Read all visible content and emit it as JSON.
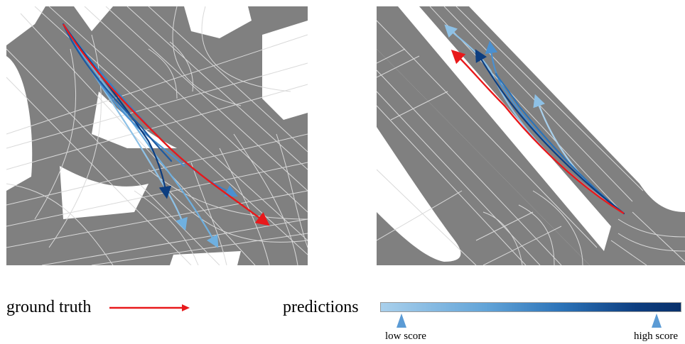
{
  "legend": {
    "ground_truth_label": "ground truth",
    "predictions_label": "predictions",
    "low_score_label": "low score",
    "high_score_label": "high score"
  },
  "colors": {
    "road": "#808080",
    "lane_lines": "#d9d9d9",
    "background": "#ffffff",
    "ground_truth": "#e8191b",
    "prediction_low": "#a9d0ec",
    "prediction_mid": "#4a90d0",
    "prediction_high": "#08306b"
  },
  "panels": [
    {
      "name": "left-scene",
      "ground_truth_count": 1,
      "prediction_count": 6
    },
    {
      "name": "right-scene",
      "ground_truth_count": 1,
      "prediction_count": 6
    }
  ]
}
